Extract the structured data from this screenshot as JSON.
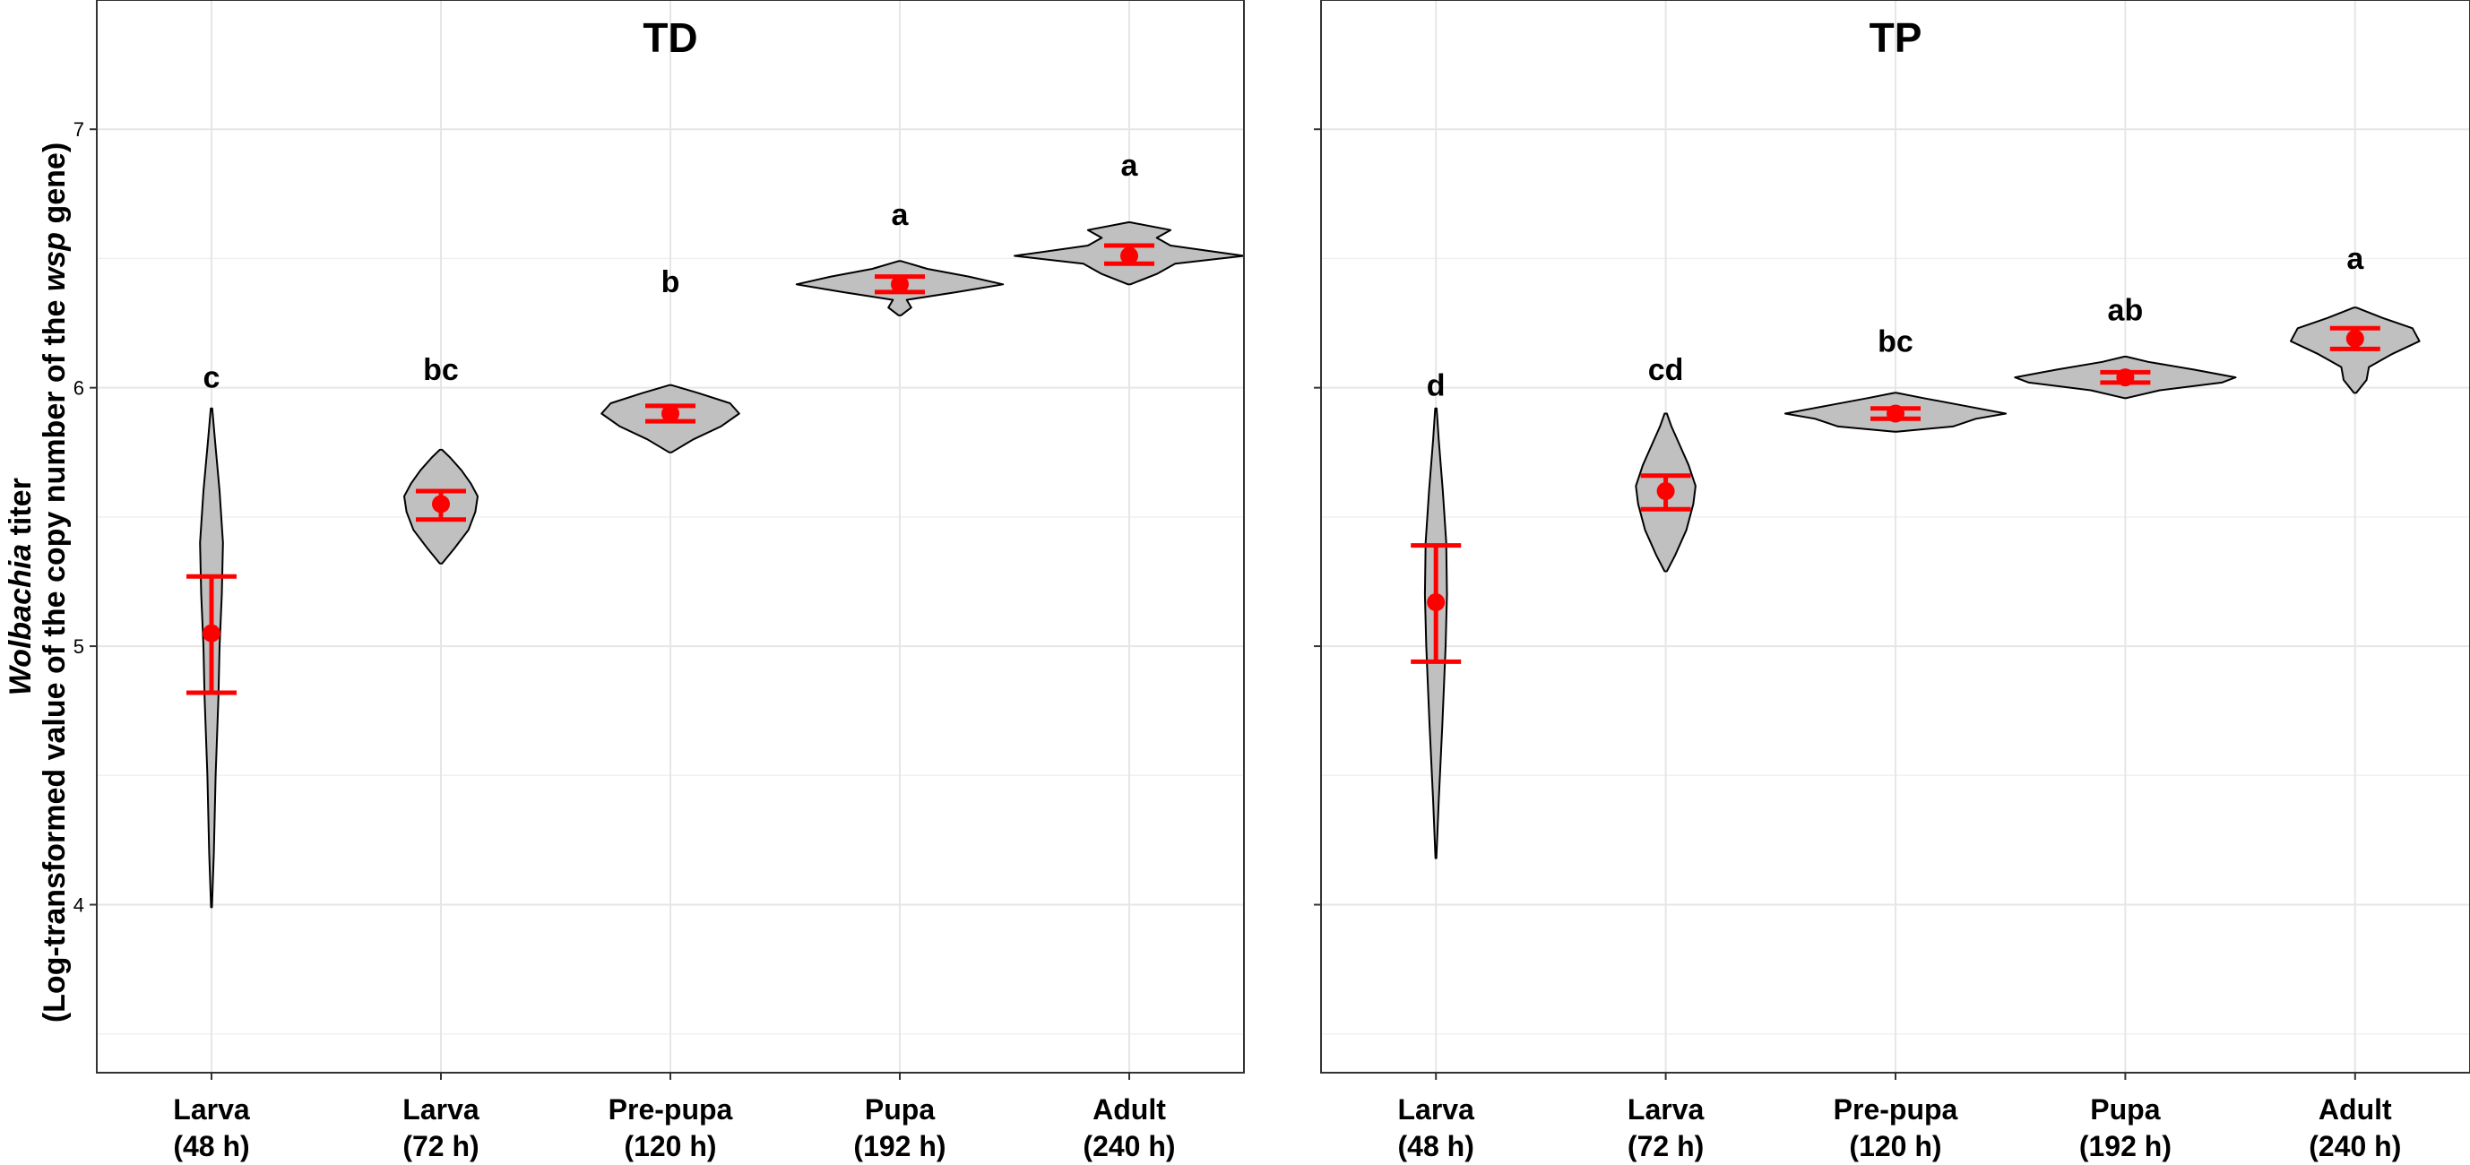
{
  "chart_data": {
    "type": "violin",
    "ylabel_italic": "Wolbachia",
    "ylabel_rest": " titer",
    "ylabel_line2_pre": "(Log-transformed value of the copy number of the ",
    "ylabel_line2_italic": "wsp",
    "ylabel_line2_post": " gene)",
    "ylim": [
      3.35,
      7.5
    ],
    "yticks": [
      4,
      5,
      6,
      7
    ],
    "categories": [
      {
        "line1": "Larva",
        "line2": "(48 h)"
      },
      {
        "line1": "Larva",
        "line2": "(72 h)"
      },
      {
        "line1": "Pre-pupa",
        "line2": "(120 h)"
      },
      {
        "line1": "Pupa",
        "line2": "(192 h)"
      },
      {
        "line1": "Adult",
        "line2": "(240 h)"
      }
    ],
    "colors": {
      "violin_fill": "#c0c0c0",
      "mean": "#ff0000",
      "grid": "#e6e6e6",
      "border": "#333333"
    },
    "panels": [
      {
        "title": "TD",
        "groups": [
          {
            "mean": 5.05,
            "lower": 4.82,
            "upper": 5.27,
            "letter": "c",
            "letter_y": 6.0,
            "violin": {
              "ys": [
                3.99,
                4.2,
                4.5,
                4.8,
                5.0,
                5.2,
                5.4,
                5.6,
                5.8,
                5.92
              ],
              "widths": [
                0.002,
                0.01,
                0.018,
                0.03,
                0.035,
                0.045,
                0.05,
                0.035,
                0.015,
                0.003
              ]
            }
          },
          {
            "mean": 5.55,
            "lower": 5.49,
            "upper": 5.6,
            "letter": "bc",
            "letter_y": 6.03,
            "violin": {
              "ys": [
                5.32,
                5.38,
                5.45,
                5.52,
                5.58,
                5.63,
                5.68,
                5.73,
                5.76
              ],
              "widths": [
                0.005,
                0.06,
                0.12,
                0.15,
                0.16,
                0.13,
                0.09,
                0.04,
                0.005
              ]
            }
          },
          {
            "mean": 5.9,
            "lower": 5.87,
            "upper": 5.93,
            "letter": "b",
            "letter_y": 6.37,
            "violin": {
              "ys": [
                5.75,
                5.8,
                5.85,
                5.9,
                5.94,
                5.98,
                6.01
              ],
              "widths": [
                0.005,
                0.1,
                0.22,
                0.3,
                0.26,
                0.12,
                0.005
              ]
            }
          },
          {
            "mean": 6.4,
            "lower": 6.37,
            "upper": 6.43,
            "letter": "a",
            "letter_y": 6.63,
            "violin": {
              "ys": [
                6.28,
                6.31,
                6.34,
                6.37,
                6.4,
                6.43,
                6.46,
                6.49
              ],
              "widths": [
                0.005,
                0.05,
                0.03,
                0.25,
                0.45,
                0.3,
                0.12,
                0.005
              ]
            }
          },
          {
            "mean": 6.51,
            "lower": 6.48,
            "upper": 6.55,
            "letter": "a",
            "letter_y": 6.82,
            "violin": {
              "ys": [
                6.4,
                6.44,
                6.48,
                6.51,
                6.55,
                6.58,
                6.61,
                6.64
              ],
              "widths": [
                0.005,
                0.12,
                0.2,
                0.5,
                0.18,
                0.12,
                0.18,
                0.005
              ]
            }
          }
        ]
      },
      {
        "title": "TP",
        "groups": [
          {
            "mean": 5.17,
            "lower": 4.94,
            "upper": 5.39,
            "letter": "d",
            "letter_y": 5.97,
            "violin": {
              "ys": [
                4.18,
                4.4,
                4.7,
                5.0,
                5.2,
                5.4,
                5.6,
                5.8,
                5.92
              ],
              "widths": [
                0.002,
                0.012,
                0.028,
                0.042,
                0.048,
                0.045,
                0.03,
                0.012,
                0.003
              ]
            }
          },
          {
            "mean": 5.6,
            "lower": 5.53,
            "upper": 5.66,
            "letter": "cd",
            "letter_y": 6.03,
            "violin": {
              "ys": [
                5.29,
                5.35,
                5.45,
                5.55,
                5.62,
                5.7,
                5.78,
                5.85,
                5.9
              ],
              "widths": [
                0.005,
                0.04,
                0.09,
                0.12,
                0.13,
                0.1,
                0.06,
                0.025,
                0.005
              ]
            }
          },
          {
            "mean": 5.9,
            "lower": 5.88,
            "upper": 5.92,
            "letter": "bc",
            "letter_y": 6.14,
            "violin": {
              "ys": [
                5.83,
                5.85,
                5.88,
                5.9,
                5.93,
                5.96,
                5.98
              ],
              "widths": [
                0.005,
                0.25,
                0.35,
                0.48,
                0.3,
                0.12,
                0.005
              ]
            }
          },
          {
            "mean": 6.04,
            "lower": 6.02,
            "upper": 6.06,
            "letter": "ab",
            "letter_y": 6.26,
            "violin": {
              "ys": [
                5.96,
                5.99,
                6.02,
                6.04,
                6.07,
                6.1,
                6.12
              ],
              "widths": [
                0.005,
                0.15,
                0.42,
                0.48,
                0.3,
                0.1,
                0.005
              ]
            }
          },
          {
            "mean": 6.19,
            "lower": 6.15,
            "upper": 6.23,
            "letter": "a",
            "letter_y": 6.46,
            "violin": {
              "ys": [
                5.98,
                6.03,
                6.08,
                6.13,
                6.18,
                6.23,
                6.27,
                6.31
              ],
              "widths": [
                0.005,
                0.05,
                0.06,
                0.16,
                0.28,
                0.25,
                0.12,
                0.005
              ]
            }
          }
        ]
      }
    ]
  }
}
